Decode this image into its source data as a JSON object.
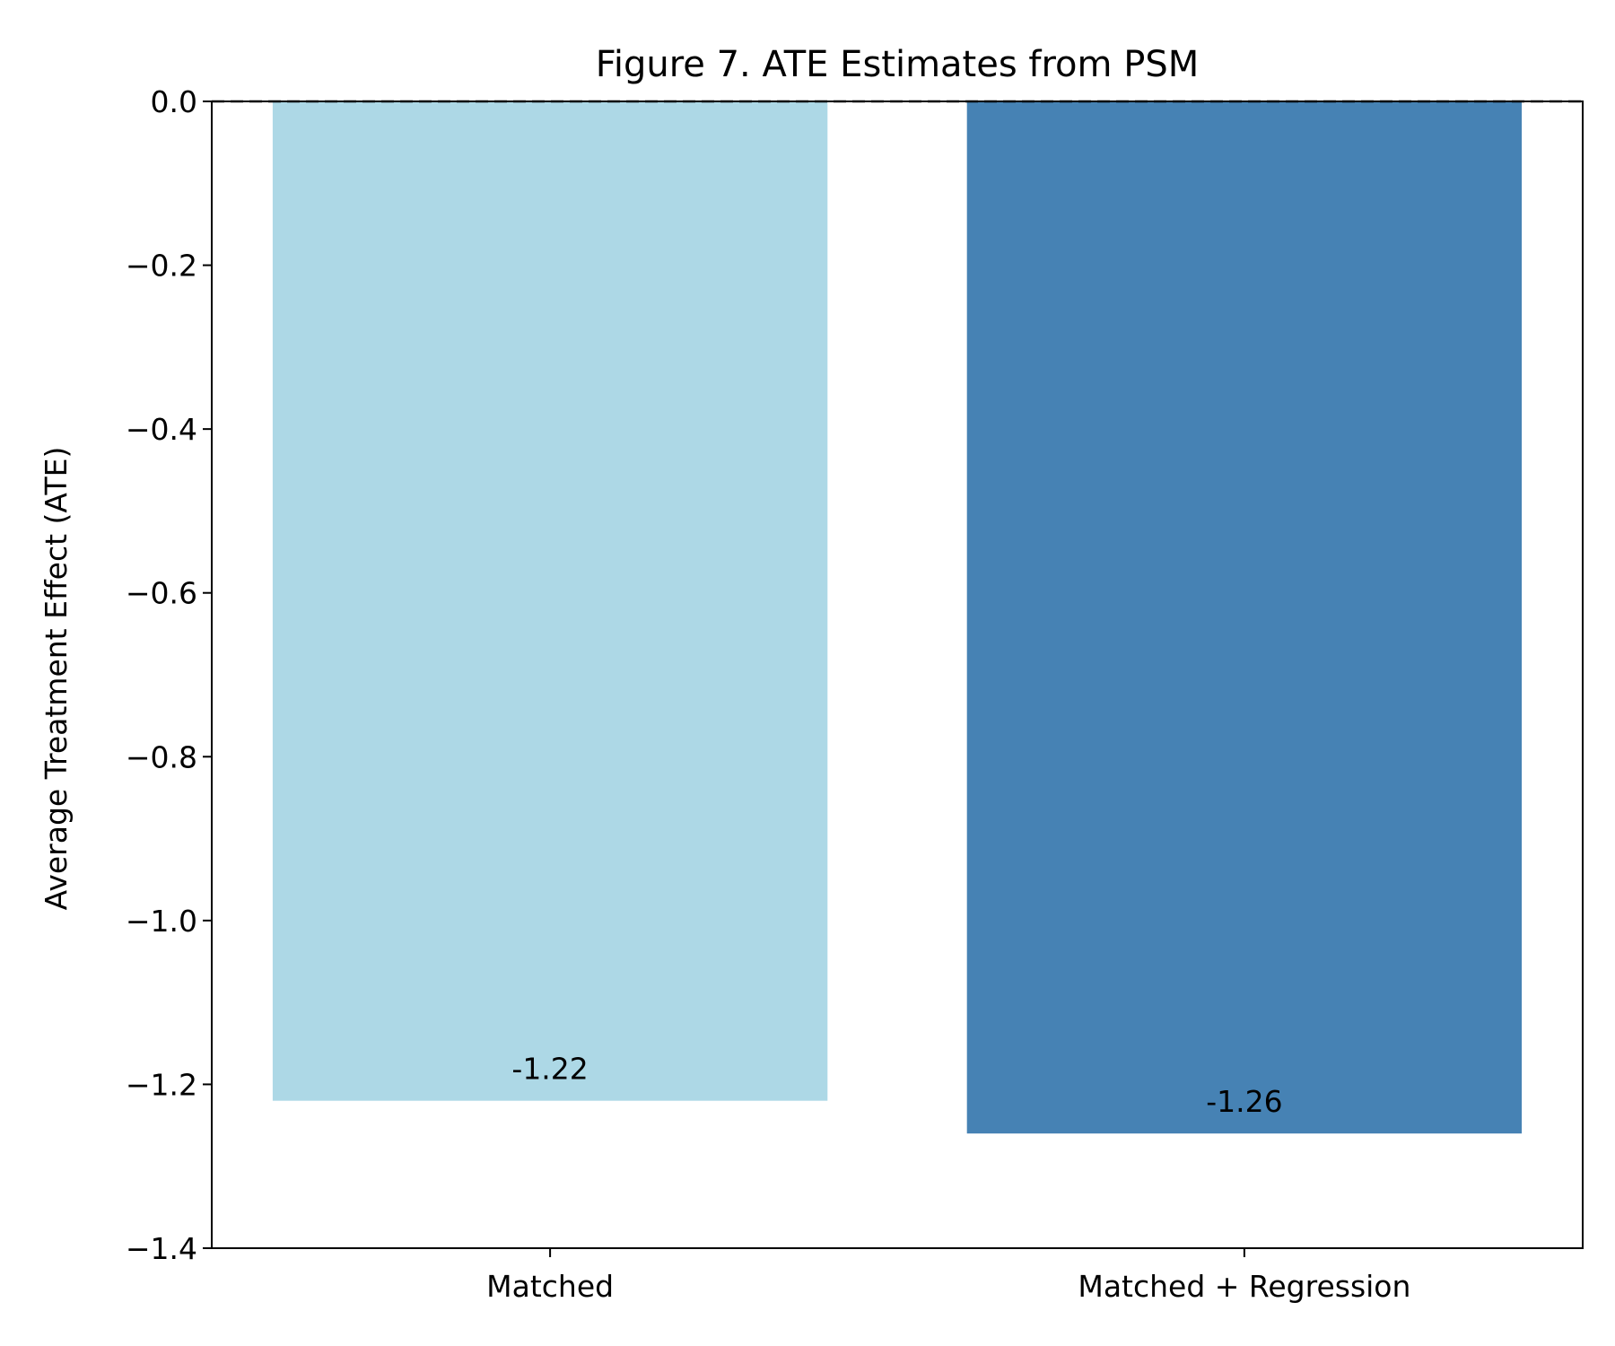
{
  "chart_data": {
    "type": "bar",
    "title": "Figure 7. ATE Estimates from PSM",
    "xlabel": "",
    "ylabel": "Average Treatment Effect (ATE)",
    "categories": [
      "Matched",
      "Matched + Regression"
    ],
    "values": [
      -1.22,
      -1.26
    ],
    "data_labels": [
      "-1.22",
      "-1.26"
    ],
    "bar_colors": [
      "#add8e6",
      "#4682b4"
    ],
    "ylim": [
      -1.4,
      0.0
    ],
    "yticks": [
      0.0,
      -0.2,
      -0.4,
      -0.6,
      -0.8,
      -1.0,
      -1.2,
      -1.4
    ],
    "ytick_labels": [
      "0.0",
      "−0.2",
      "−0.4",
      "−0.6",
      "−0.8",
      "−1.0",
      "−1.2",
      "−1.4"
    ],
    "reference_line": {
      "y": 0.0,
      "style": "dashed",
      "color": "#000000"
    },
    "grid": false,
    "legend": "none"
  }
}
